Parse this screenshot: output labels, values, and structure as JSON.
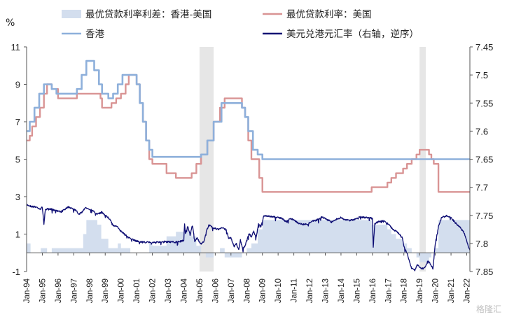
{
  "chart_data": {
    "type": "line",
    "ylabel_left": "%",
    "x_labels": [
      "Jan-94",
      "Jan-95",
      "Jan-96",
      "Jan-97",
      "Jan-98",
      "Jan-99",
      "Jan-00",
      "Jan-01",
      "Jan-02",
      "Jan-03",
      "Jan-04",
      "Jan-05",
      "Jan-06",
      "Jan-07",
      "Jan-08",
      "Jan-09",
      "Jan-10",
      "Jan-11",
      "Jan-12",
      "Jan-13",
      "Jan-14",
      "Jan-15",
      "Jan-16",
      "Jan-17",
      "Jan-18",
      "Jan-19",
      "Jan-20",
      "Jan-21",
      "Jan-22"
    ],
    "y_left": {
      "min": -1,
      "max": 11,
      "ticks": [
        "-1",
        "1",
        "3",
        "5",
        "7",
        "9",
        "11"
      ]
    },
    "y_right": {
      "min": 7.45,
      "max": 7.85,
      "reversed": true,
      "ticks": [
        "7.45",
        "7.5",
        "7.55",
        "7.6",
        "7.65",
        "7.7",
        "7.75",
        "7.8",
        "7.85"
      ]
    },
    "shaded_periods": [
      [
        2005.0,
        2005.9
      ],
      [
        2019.0,
        2019.4
      ]
    ],
    "legend": [
      {
        "label": "最优贷款利率利差：香港-美国",
        "style": "area",
        "color": "#d3deee"
      },
      {
        "label": "最优贷款利率：美国",
        "style": "line",
        "color": "#d99494"
      },
      {
        "label": "香港",
        "style": "line",
        "color": "#8eb0db"
      },
      {
        "label": "美元兑港元汇率（右轴，逆序）",
        "style": "line",
        "color": "#0e0e74"
      }
    ],
    "series": [
      {
        "name": "最优贷款利率：美国",
        "axis": "left",
        "color": "#d99494",
        "points": [
          [
            1994.0,
            6.0
          ],
          [
            1994.2,
            6.25
          ],
          [
            1994.35,
            6.75
          ],
          [
            1994.6,
            7.25
          ],
          [
            1994.85,
            7.75
          ],
          [
            1995.1,
            8.5
          ],
          [
            1995.3,
            9.0
          ],
          [
            1995.6,
            8.75
          ],
          [
            1996.0,
            8.25
          ],
          [
            1997.2,
            8.5
          ],
          [
            1998.7,
            8.25
          ],
          [
            1998.8,
            7.75
          ],
          [
            1999.4,
            8.0
          ],
          [
            1999.7,
            8.25
          ],
          [
            2000.0,
            8.5
          ],
          [
            2000.3,
            9.0
          ],
          [
            2000.5,
            9.5
          ],
          [
            2001.0,
            9.0
          ],
          [
            2001.2,
            8.0
          ],
          [
            2001.4,
            7.0
          ],
          [
            2001.6,
            6.0
          ],
          [
            2001.8,
            5.0
          ],
          [
            2002.0,
            4.75
          ],
          [
            2002.9,
            4.25
          ],
          [
            2003.5,
            4.0
          ],
          [
            2004.5,
            4.25
          ],
          [
            2004.8,
            4.75
          ],
          [
            2005.1,
            5.25
          ],
          [
            2005.5,
            6.0
          ],
          [
            2005.9,
            7.0
          ],
          [
            2006.3,
            7.75
          ],
          [
            2006.6,
            8.25
          ],
          [
            2007.7,
            7.75
          ],
          [
            2007.9,
            7.25
          ],
          [
            2008.1,
            6.0
          ],
          [
            2008.3,
            5.0
          ],
          [
            2008.8,
            4.0
          ],
          [
            2009.0,
            3.25
          ],
          [
            2015.95,
            3.5
          ],
          [
            2016.95,
            3.75
          ],
          [
            2017.2,
            4.0
          ],
          [
            2017.5,
            4.25
          ],
          [
            2017.95,
            4.5
          ],
          [
            2018.2,
            4.75
          ],
          [
            2018.5,
            5.0
          ],
          [
            2018.8,
            5.25
          ],
          [
            2019.0,
            5.5
          ],
          [
            2019.6,
            5.25
          ],
          [
            2019.75,
            5.0
          ],
          [
            2019.9,
            4.75
          ],
          [
            2020.2,
            3.25
          ],
          [
            2022.2,
            3.25
          ]
        ]
      },
      {
        "name": "香港",
        "axis": "left",
        "color": "#8eb0db",
        "points": [
          [
            1994.0,
            6.5
          ],
          [
            1994.2,
            7.0
          ],
          [
            1994.5,
            7.75
          ],
          [
            1994.8,
            8.5
          ],
          [
            1995.1,
            9.0
          ],
          [
            1995.6,
            8.75
          ],
          [
            1995.9,
            8.5
          ],
          [
            1997.2,
            8.75
          ],
          [
            1997.5,
            9.5
          ],
          [
            1997.8,
            10.25
          ],
          [
            1998.3,
            9.75
          ],
          [
            1998.6,
            9.0
          ],
          [
            1998.8,
            8.5
          ],
          [
            1999.2,
            8.25
          ],
          [
            1999.5,
            8.5
          ],
          [
            1999.8,
            9.0
          ],
          [
            2000.1,
            9.5
          ],
          [
            2000.6,
            9.5
          ],
          [
            2001.0,
            9.0
          ],
          [
            2001.2,
            8.0
          ],
          [
            2001.4,
            7.0
          ],
          [
            2001.6,
            6.0
          ],
          [
            2001.8,
            5.5
          ],
          [
            2002.0,
            5.125
          ],
          [
            2004.8,
            5.125
          ],
          [
            2005.1,
            5.25
          ],
          [
            2005.5,
            6.0
          ],
          [
            2005.9,
            7.0
          ],
          [
            2006.4,
            8.0
          ],
          [
            2007.7,
            7.75
          ],
          [
            2007.9,
            7.25
          ],
          [
            2008.1,
            6.5
          ],
          [
            2008.4,
            5.5
          ],
          [
            2008.7,
            5.25
          ],
          [
            2009.0,
            5.0
          ],
          [
            2022.2,
            5.0
          ]
        ]
      },
      {
        "name": "美元兑港元汇率（右轴，逆序）",
        "axis": "right",
        "color": "#0e0e74",
        "points": [
          [
            1994.0,
            7.731
          ],
          [
            1994.3,
            7.734
          ],
          [
            1994.6,
            7.735
          ],
          [
            1994.9,
            7.739
          ],
          [
            1995.0,
            7.735
          ],
          [
            1995.1,
            7.765
          ],
          [
            1995.2,
            7.739
          ],
          [
            1995.6,
            7.739
          ],
          [
            1995.8,
            7.741
          ],
          [
            1996.2,
            7.744
          ],
          [
            1996.6,
            7.736
          ],
          [
            1996.9,
            7.737
          ],
          [
            1997.2,
            7.742
          ],
          [
            1997.3,
            7.748
          ],
          [
            1997.5,
            7.745
          ],
          [
            1997.7,
            7.737
          ],
          [
            1997.9,
            7.737
          ],
          [
            1998.2,
            7.742
          ],
          [
            1998.5,
            7.748
          ],
          [
            1998.8,
            7.745
          ],
          [
            1999.1,
            7.752
          ],
          [
            1999.3,
            7.757
          ],
          [
            1999.5,
            7.768
          ],
          [
            1999.8,
            7.771
          ],
          [
            2000.0,
            7.778
          ],
          [
            2000.4,
            7.788
          ],
          [
            2000.8,
            7.794
          ],
          [
            2001.2,
            7.797
          ],
          [
            2001.6,
            7.798
          ],
          [
            2002.0,
            7.798
          ],
          [
            2002.5,
            7.798
          ],
          [
            2003.0,
            7.797
          ],
          [
            2003.5,
            7.798
          ],
          [
            2004.0,
            7.795
          ],
          [
            2004.05,
            7.764
          ],
          [
            2004.1,
            7.782
          ],
          [
            2004.25,
            7.77
          ],
          [
            2004.4,
            7.785
          ],
          [
            2004.55,
            7.768
          ],
          [
            2004.7,
            7.796
          ],
          [
            2004.85,
            7.79
          ],
          [
            2005.0,
            7.798
          ],
          [
            2005.15,
            7.801
          ],
          [
            2005.3,
            7.795
          ],
          [
            2005.45,
            7.776
          ],
          [
            2005.6,
            7.768
          ],
          [
            2005.75,
            7.77
          ],
          [
            2005.9,
            7.772
          ],
          [
            2006.2,
            7.775
          ],
          [
            2006.5,
            7.772
          ],
          [
            2006.7,
            7.776
          ],
          [
            2006.85,
            7.79
          ],
          [
            2007.0,
            7.79
          ],
          [
            2007.2,
            7.806
          ],
          [
            2007.35,
            7.8
          ],
          [
            2007.5,
            7.812
          ],
          [
            2007.6,
            7.794
          ],
          [
            2007.75,
            7.81
          ],
          [
            2007.9,
            7.805
          ],
          [
            2008.0,
            7.794
          ],
          [
            2008.15,
            7.783
          ],
          [
            2008.3,
            7.788
          ],
          [
            2008.45,
            7.779
          ],
          [
            2008.6,
            7.79
          ],
          [
            2008.75,
            7.765
          ],
          [
            2008.9,
            7.77
          ],
          [
            2009.1,
            7.751
          ],
          [
            2009.5,
            7.752
          ],
          [
            2009.9,
            7.753
          ],
          [
            2010.2,
            7.755
          ],
          [
            2010.5,
            7.761
          ],
          [
            2010.8,
            7.756
          ],
          [
            2011.0,
            7.758
          ],
          [
            2011.3,
            7.764
          ],
          [
            2011.6,
            7.766
          ],
          [
            2011.9,
            7.765
          ],
          [
            2012.2,
            7.76
          ],
          [
            2012.5,
            7.758
          ],
          [
            2012.8,
            7.753
          ],
          [
            2013.1,
            7.757
          ],
          [
            2013.4,
            7.762
          ],
          [
            2013.7,
            7.757
          ],
          [
            2014.0,
            7.754
          ],
          [
            2014.3,
            7.758
          ],
          [
            2014.6,
            7.759
          ],
          [
            2014.9,
            7.757
          ],
          [
            2015.2,
            7.753
          ],
          [
            2015.5,
            7.754
          ],
          [
            2015.8,
            7.754
          ],
          [
            2016.0,
            7.756
          ],
          [
            2016.05,
            7.808
          ],
          [
            2016.15,
            7.765
          ],
          [
            2016.4,
            7.761
          ],
          [
            2016.7,
            7.76
          ],
          [
            2017.0,
            7.765
          ],
          [
            2017.3,
            7.775
          ],
          [
            2017.6,
            7.78
          ],
          [
            2017.9,
            7.79
          ],
          [
            2018.0,
            7.805
          ],
          [
            2018.2,
            7.817
          ],
          [
            2018.35,
            7.832
          ],
          [
            2018.5,
            7.845
          ],
          [
            2018.7,
            7.848
          ],
          [
            2018.85,
            7.838
          ],
          [
            2019.0,
            7.842
          ],
          [
            2019.2,
            7.845
          ],
          [
            2019.4,
            7.84
          ],
          [
            2019.55,
            7.83
          ],
          [
            2019.7,
            7.838
          ],
          [
            2019.85,
            7.845
          ],
          [
            2020.0,
            7.8
          ],
          [
            2020.2,
            7.77
          ],
          [
            2020.4,
            7.754
          ],
          [
            2020.7,
            7.751
          ],
          [
            2021.0,
            7.754
          ],
          [
            2021.3,
            7.764
          ],
          [
            2021.6,
            7.772
          ],
          [
            2021.8,
            7.78
          ],
          [
            2021.95,
            7.79
          ],
          [
            2022.1,
            7.805
          ],
          [
            2022.2,
            7.812
          ]
        ]
      },
      {
        "name": "最优贷款利率利差：香港-美国",
        "axis": "left",
        "color": "#d3deee",
        "points": [
          [
            1994.0,
            0.5
          ],
          [
            1994.2,
            0.5
          ],
          [
            1994.25,
            0.0
          ],
          [
            1994.9,
            0.25
          ],
          [
            1995.3,
            0.0
          ],
          [
            1995.6,
            0.25
          ],
          [
            1997.4,
            0.25
          ],
          [
            1997.6,
            1.0
          ],
          [
            1997.8,
            1.75
          ],
          [
            1998.5,
            1.5
          ],
          [
            1998.75,
            0.75
          ],
          [
            1999.2,
            0.25
          ],
          [
            1999.5,
            0.25
          ],
          [
            1999.8,
            0.5
          ],
          [
            2000.0,
            0.25
          ],
          [
            2000.6,
            0.0
          ],
          [
            2001.8,
            0.5
          ],
          [
            2002.0,
            0.375
          ],
          [
            2002.9,
            0.875
          ],
          [
            2003.5,
            1.125
          ],
          [
            2004.5,
            0.875
          ],
          [
            2004.8,
            0.375
          ],
          [
            2005.1,
            0.0
          ],
          [
            2005.4,
            -0.25
          ],
          [
            2005.9,
            0.0
          ],
          [
            2006.3,
            0.25
          ],
          [
            2006.6,
            -0.25
          ],
          [
            2007.7,
            0.0
          ],
          [
            2008.0,
            0.25
          ],
          [
            2008.3,
            0.5
          ],
          [
            2008.7,
            1.25
          ],
          [
            2009.0,
            1.75
          ],
          [
            2015.95,
            1.5
          ],
          [
            2016.95,
            1.25
          ],
          [
            2017.2,
            1.0
          ],
          [
            2017.5,
            0.75
          ],
          [
            2017.95,
            0.5
          ],
          [
            2018.2,
            0.25
          ],
          [
            2018.5,
            0.0
          ],
          [
            2018.8,
            -0.25
          ],
          [
            2019.0,
            -0.5
          ],
          [
            2019.6,
            -0.25
          ],
          [
            2019.75,
            0.0
          ],
          [
            2019.9,
            0.25
          ],
          [
            2020.2,
            1.75
          ],
          [
            2022.2,
            1.75
          ]
        ]
      }
    ]
  },
  "watermark": "格隆汇"
}
